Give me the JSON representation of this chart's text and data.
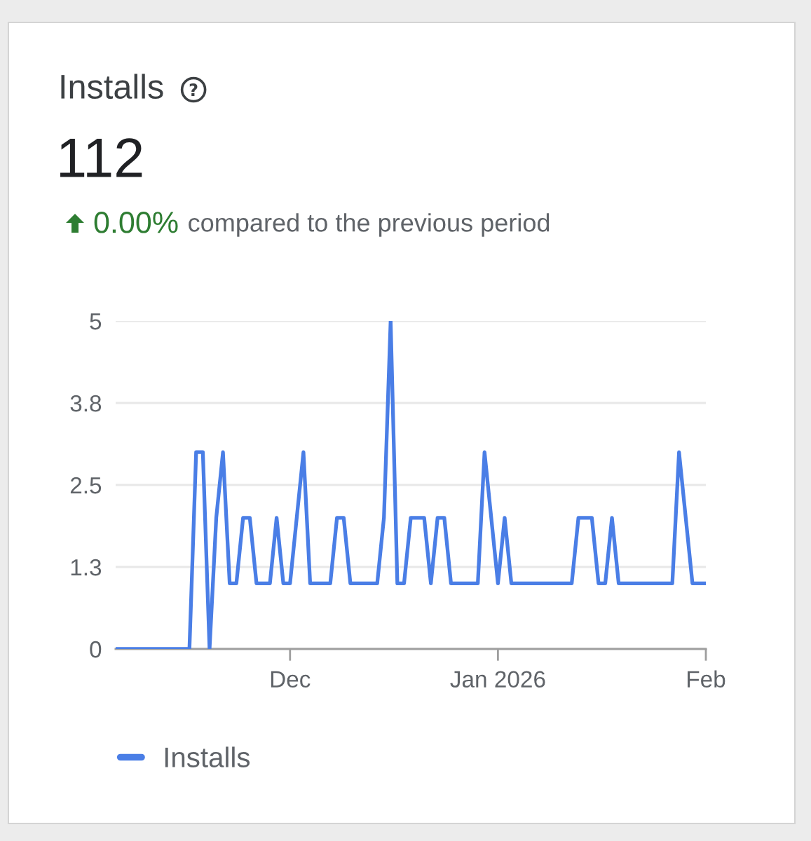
{
  "chart_data": {
    "type": "line",
    "title": "Installs",
    "subtitle": "112",
    "annotations": [
      "0.00%",
      "compared to the previous period"
    ],
    "x": [
      "2025-11-05",
      "2025-11-06",
      "2025-11-07",
      "2025-11-08",
      "2025-11-09",
      "2025-11-10",
      "2025-11-11",
      "2025-11-12",
      "2025-11-13",
      "2025-11-14",
      "2025-11-15",
      "2025-11-16",
      "2025-11-17",
      "2025-11-18",
      "2025-11-19",
      "2025-11-20",
      "2025-11-21",
      "2025-11-22",
      "2025-11-23",
      "2025-11-24",
      "2025-11-25",
      "2025-11-26",
      "2025-11-27",
      "2025-11-28",
      "2025-11-29",
      "2025-11-30",
      "2025-12-01",
      "2025-12-02",
      "2025-12-03",
      "2025-12-04",
      "2025-12-05",
      "2025-12-06",
      "2025-12-07",
      "2025-12-08",
      "2025-12-09",
      "2025-12-10",
      "2025-12-11",
      "2025-12-12",
      "2025-12-13",
      "2025-12-14",
      "2025-12-15",
      "2025-12-16",
      "2025-12-17",
      "2025-12-18",
      "2025-12-19",
      "2025-12-20",
      "2025-12-21",
      "2025-12-22",
      "2025-12-23",
      "2025-12-24",
      "2025-12-25",
      "2025-12-26",
      "2025-12-27",
      "2025-12-28",
      "2025-12-29",
      "2025-12-30",
      "2025-12-31",
      "2026-01-01",
      "2026-01-02",
      "2026-01-03",
      "2026-01-04",
      "2026-01-05",
      "2026-01-06",
      "2026-01-07",
      "2026-01-08",
      "2026-01-09",
      "2026-01-10",
      "2026-01-11",
      "2026-01-12",
      "2026-01-13",
      "2026-01-14",
      "2026-01-15",
      "2026-01-16",
      "2026-01-17",
      "2026-01-18",
      "2026-01-19",
      "2026-01-20",
      "2026-01-21",
      "2026-01-22",
      "2026-01-23",
      "2026-01-24",
      "2026-01-25",
      "2026-01-26",
      "2026-01-27",
      "2026-01-28",
      "2026-01-29",
      "2026-01-30",
      "2026-01-31",
      "2026-02-01"
    ],
    "series": [
      {
        "name": "Installs",
        "color": "#4a7ee6",
        "values": [
          0,
          0,
          0,
          0,
          0,
          0,
          0,
          0,
          0,
          0,
          0,
          0,
          3,
          3,
          0,
          2,
          3,
          1,
          1,
          2,
          2,
          1,
          1,
          1,
          2,
          1,
          1,
          2,
          3,
          1,
          1,
          1,
          1,
          2,
          2,
          1,
          1,
          1,
          1,
          1,
          2,
          5,
          1,
          1,
          2,
          2,
          2,
          1,
          2,
          2,
          1,
          1,
          1,
          1,
          1,
          3,
          2,
          1,
          2,
          1,
          1,
          1,
          1,
          1,
          1,
          1,
          1,
          1,
          1,
          2,
          2,
          2,
          1,
          1,
          2,
          1,
          1,
          1,
          1,
          1,
          1,
          1,
          1,
          1,
          3,
          2,
          1,
          1,
          1
        ]
      }
    ],
    "xlim": [
      "2025-11-05",
      "2026-02-01"
    ],
    "xticks": [
      {
        "value": "2025-12-01",
        "label": "Dec"
      },
      {
        "value": "2026-01-01",
        "label": "Jan 2026"
      },
      {
        "value": "2026-02-01",
        "label": "Feb"
      }
    ],
    "ylim": [
      0,
      5
    ],
    "yticks": [
      0,
      {
        "value": 1.25,
        "label": "1.3"
      },
      2.5,
      {
        "value": 3.75,
        "label": "3.8"
      },
      5
    ],
    "grid": "y",
    "legend": "bottom",
    "line_style": "solid"
  }
}
